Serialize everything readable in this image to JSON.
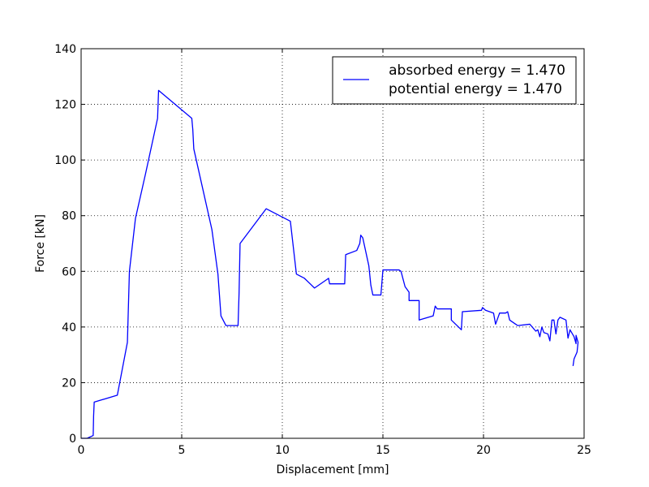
{
  "chart_data": {
    "type": "line",
    "title": "",
    "xlabel": "Displacement [mm]",
    "ylabel": "Force [kN]",
    "xlim": [
      0,
      25
    ],
    "ylim": [
      0,
      140
    ],
    "xticks": [
      0,
      5,
      10,
      15,
      20,
      25
    ],
    "yticks": [
      0,
      20,
      40,
      60,
      80,
      100,
      120,
      140
    ],
    "xtick_labels": [
      "0",
      "5",
      "10",
      "15",
      "20",
      "25"
    ],
    "ytick_labels": [
      "0",
      "20",
      "40",
      "60",
      "80",
      "100",
      "120",
      "140"
    ],
    "grid": true,
    "legend": {
      "placement": "top-right",
      "entries": [
        "absorbed energy = 1.470",
        "potential energy = 1.470"
      ]
    },
    "series": [
      {
        "color": "#0000ff",
        "points": [
          [
            0.0,
            0.0
          ],
          [
            0.3,
            0.0
          ],
          [
            0.6,
            1.0
          ],
          [
            0.62,
            8.0
          ],
          [
            0.65,
            13.0
          ],
          [
            1.8,
            15.5
          ],
          [
            2.3,
            34.5
          ],
          [
            2.4,
            60.0
          ],
          [
            2.7,
            79.0
          ],
          [
            3.2,
            95.0
          ],
          [
            3.8,
            115.0
          ],
          [
            3.85,
            125.0
          ],
          [
            5.5,
            115.0
          ],
          [
            5.55,
            111.0
          ],
          [
            5.6,
            104.0
          ],
          [
            6.5,
            75.0
          ],
          [
            6.8,
            59.0
          ],
          [
            6.95,
            44.0
          ],
          [
            7.2,
            40.5
          ],
          [
            7.8,
            40.5
          ],
          [
            7.85,
            52.0
          ],
          [
            7.9,
            70.0
          ],
          [
            9.2,
            82.5
          ],
          [
            10.4,
            78.0
          ],
          [
            10.7,
            59.0
          ],
          [
            11.1,
            57.5
          ],
          [
            11.6,
            54.0
          ],
          [
            12.3,
            57.5
          ],
          [
            12.35,
            55.5
          ],
          [
            13.1,
            55.5
          ],
          [
            13.15,
            66.0
          ],
          [
            13.7,
            67.5
          ],
          [
            13.85,
            70.0
          ],
          [
            13.9,
            73.0
          ],
          [
            14.0,
            72.0
          ],
          [
            14.3,
            62.0
          ],
          [
            14.4,
            55.0
          ],
          [
            14.5,
            51.5
          ],
          [
            14.9,
            51.5
          ],
          [
            15.0,
            60.5
          ],
          [
            15.8,
            60.5
          ],
          [
            15.9,
            60.0
          ],
          [
            16.1,
            54.5
          ],
          [
            16.3,
            52.5
          ],
          [
            16.3,
            49.5
          ],
          [
            16.8,
            49.5
          ],
          [
            16.8,
            42.5
          ],
          [
            17.5,
            44.0
          ],
          [
            17.6,
            47.5
          ],
          [
            17.7,
            46.5
          ],
          [
            18.4,
            46.5
          ],
          [
            18.4,
            42.5
          ],
          [
            18.9,
            39.0
          ],
          [
            18.95,
            45.5
          ],
          [
            19.9,
            46.0
          ],
          [
            19.95,
            47.0
          ],
          [
            20.1,
            46.0
          ],
          [
            20.5,
            45.0
          ],
          [
            20.6,
            41.0
          ],
          [
            20.8,
            45.0
          ],
          [
            21.1,
            45.0
          ],
          [
            21.2,
            45.5
          ],
          [
            21.3,
            42.5
          ],
          [
            21.7,
            40.5
          ],
          [
            22.3,
            41.0
          ],
          [
            22.6,
            38.5
          ],
          [
            22.7,
            39.0
          ],
          [
            22.8,
            36.5
          ],
          [
            22.9,
            40.0
          ],
          [
            23.0,
            38.0
          ],
          [
            23.2,
            37.5
          ],
          [
            23.3,
            35.0
          ],
          [
            23.4,
            42.5
          ],
          [
            23.5,
            42.5
          ],
          [
            23.6,
            37.5
          ],
          [
            23.7,
            42.5
          ],
          [
            23.8,
            43.5
          ],
          [
            24.1,
            42.5
          ],
          [
            24.2,
            36.0
          ],
          [
            24.3,
            39.0
          ],
          [
            24.5,
            36.5
          ],
          [
            24.6,
            34.0
          ],
          [
            24.6,
            37.0
          ],
          [
            24.7,
            34.5
          ],
          [
            24.65,
            31.0
          ],
          [
            24.5,
            28.5
          ],
          [
            24.45,
            26.0
          ]
        ]
      }
    ]
  }
}
